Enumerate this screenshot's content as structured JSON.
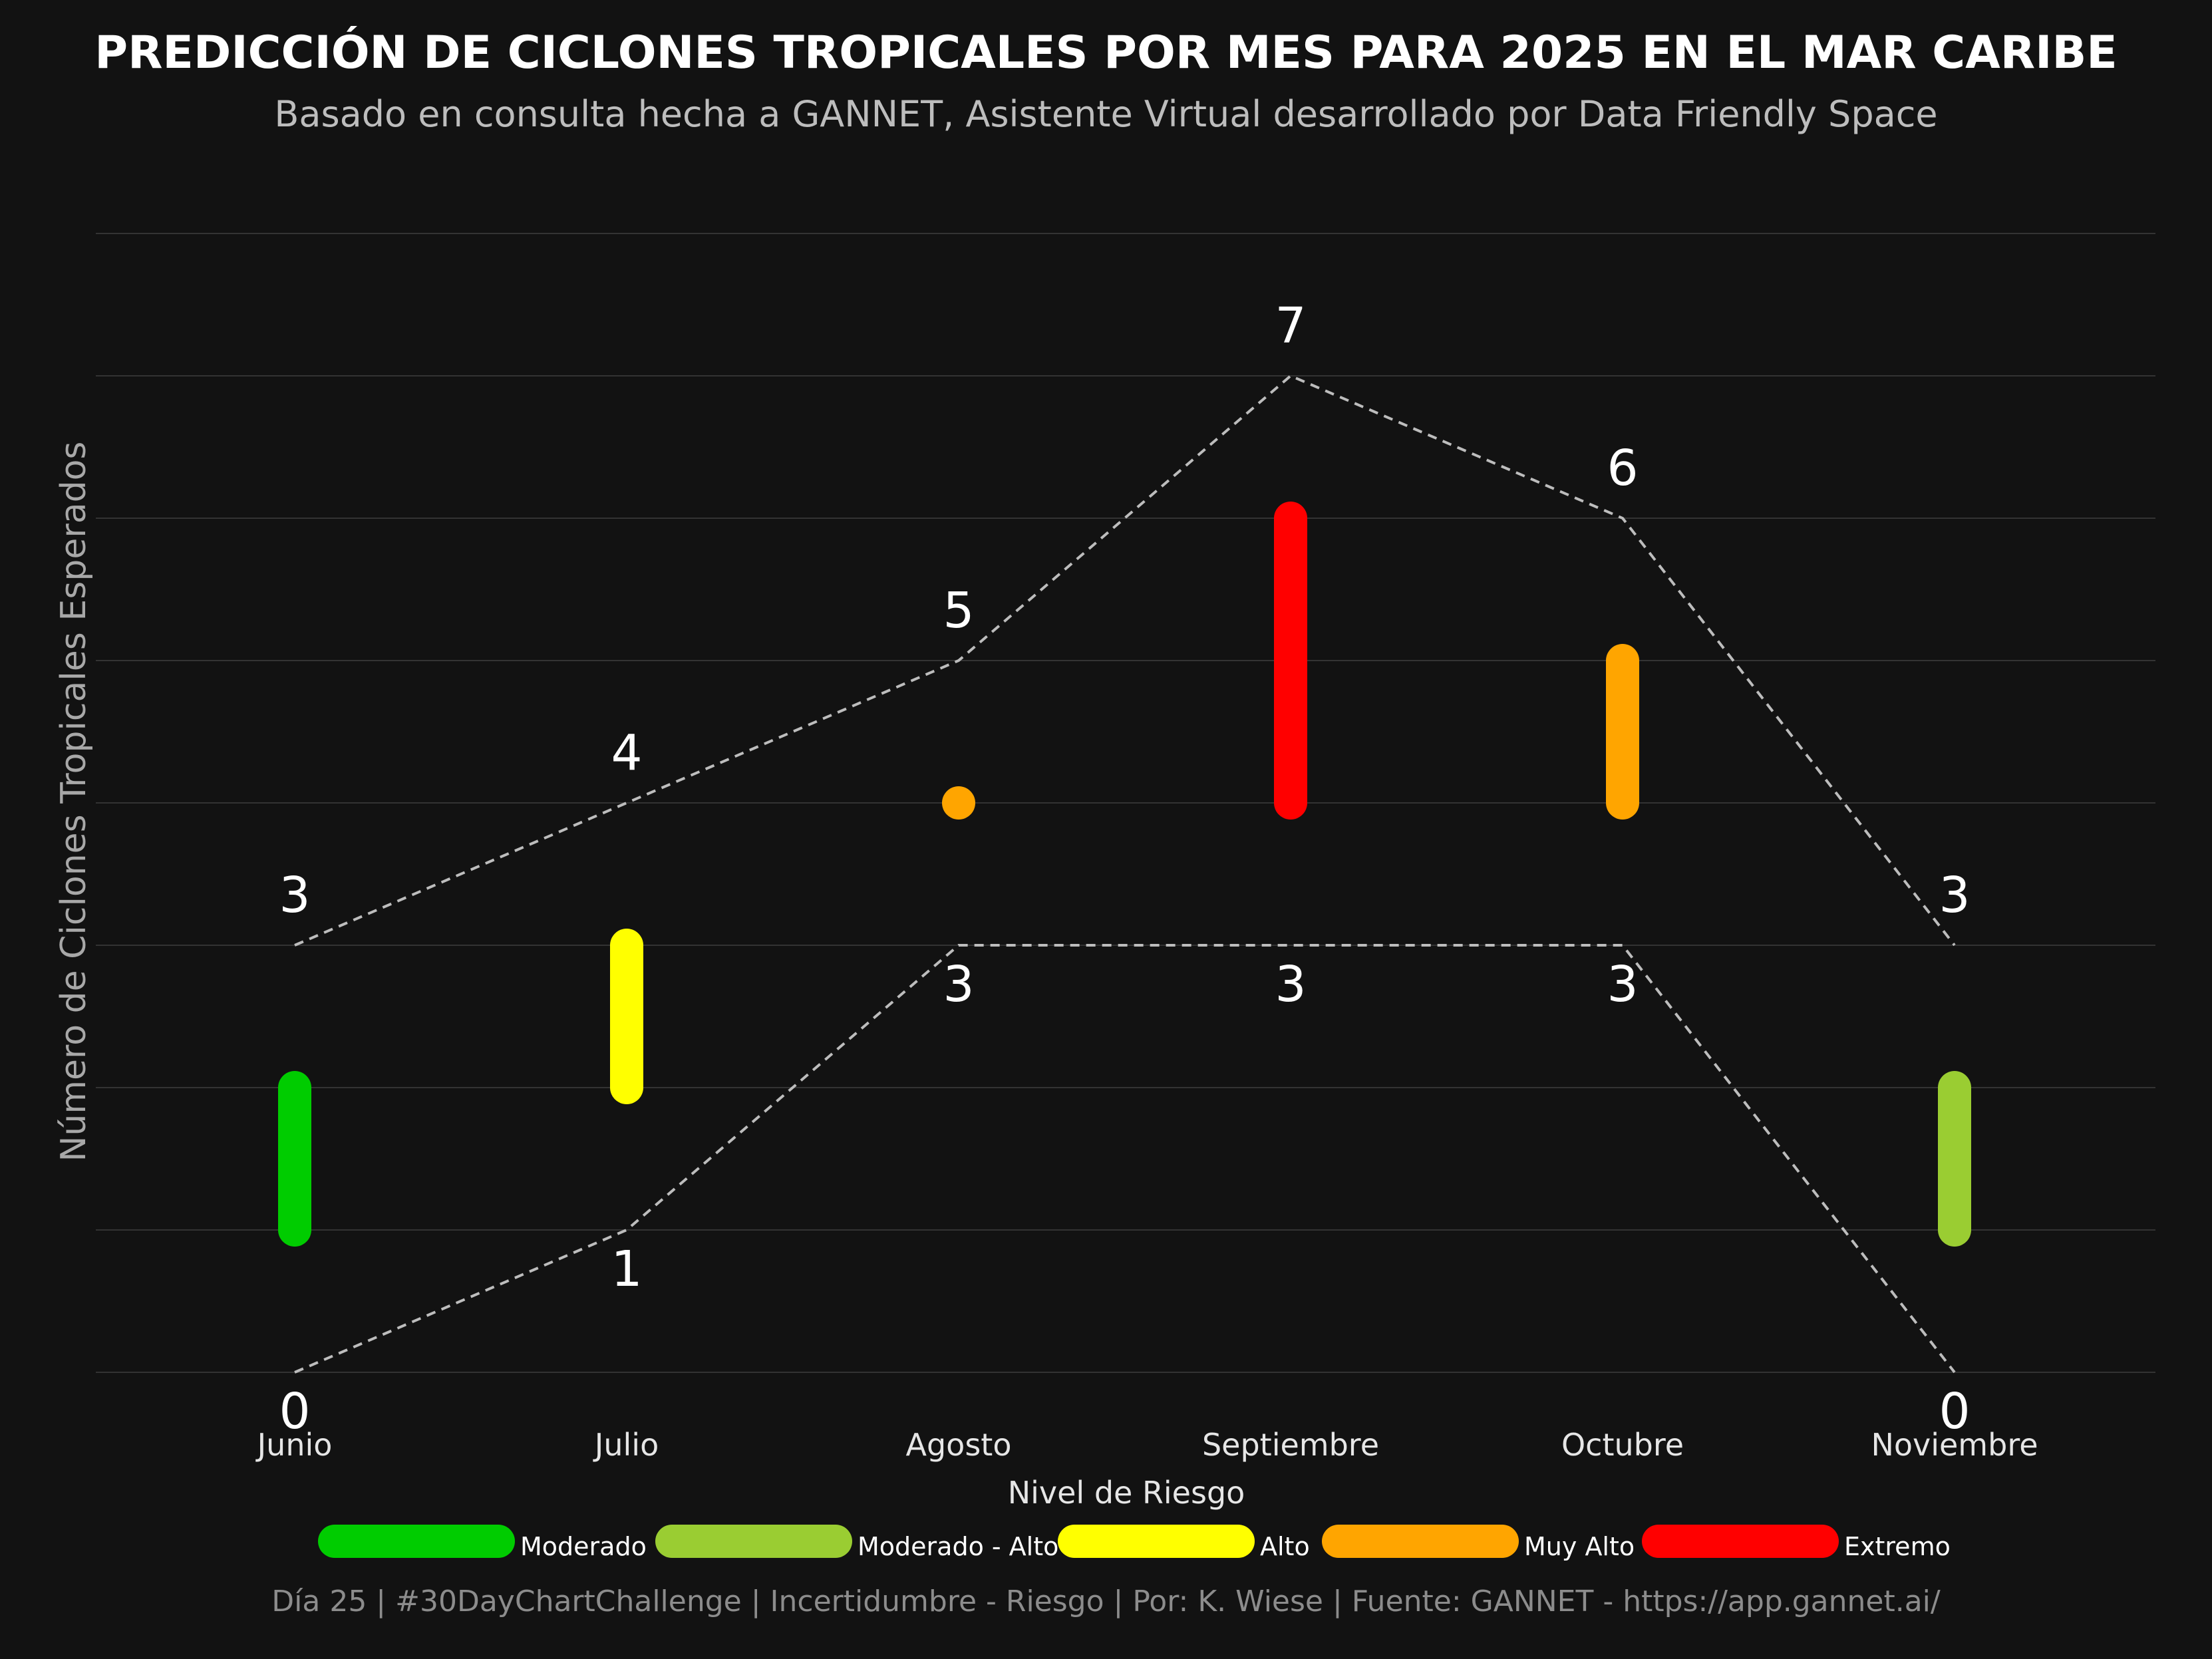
{
  "chart_data": {
    "type": "range",
    "title": "PREDICCIÓN DE CICLONES TROPICALES POR MES PARA 2025 EN EL MAR CARIBE",
    "subtitle": "Basado en consulta hecha a GANNET, Asistente Virtual desarrollado por Data Friendly Space",
    "ylabel": "Número de Ciclones Tropicales Esperados",
    "categories": [
      "Junio",
      "Julio",
      "Agosto",
      "Septiembre",
      "Octubre",
      "Noviembre"
    ],
    "min_values": [
      0,
      1,
      3,
      3,
      3,
      0
    ],
    "max_values": [
      3,
      4,
      5,
      7,
      6,
      3
    ],
    "risk_levels": [
      "Moderado",
      "Alto",
      "Muy Alto",
      "Extremo",
      "Muy Alto",
      "Moderado - Alto"
    ],
    "ylim": [
      0,
      8
    ],
    "grid": true,
    "legend": {
      "title": "Nivel de Riesgo",
      "position": "bottom",
      "items": [
        {
          "label": "Moderado",
          "color": "#00CC00"
        },
        {
          "label": "Moderado - Alto",
          "color": "#9ACD32"
        },
        {
          "label": "Alto",
          "color": "#FFFF00"
        },
        {
          "label": "Muy Alto",
          "color": "#FFA500"
        },
        {
          "label": "Extremo",
          "color": "#FF0000"
        }
      ]
    },
    "caption": "Día 25 | #30DayChartChallenge | Incertidumbre - Riesgo | Por: K. Wiese | Fuente: GANNET - https://app.gannet.ai/"
  }
}
